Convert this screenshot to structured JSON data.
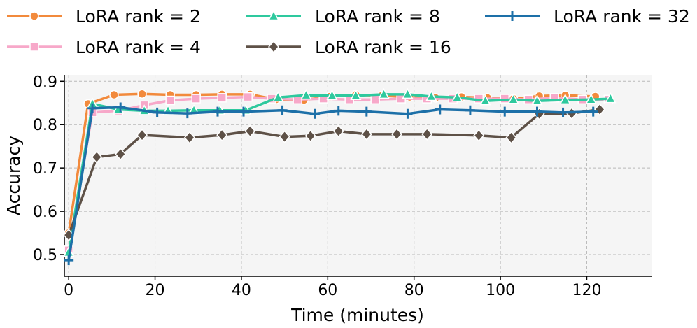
{
  "chart_data": {
    "type": "line",
    "title": "",
    "xlabel": "Time (minutes)",
    "ylabel": "Accuracy",
    "xlim": [
      -1,
      135
    ],
    "ylim": [
      0.45,
      0.915
    ],
    "xticks": [
      0,
      20,
      40,
      60,
      80,
      100,
      120
    ],
    "yticks": [
      0.5,
      0.6,
      0.7,
      0.8,
      0.9
    ],
    "xtick_labels": [
      "0",
      "20",
      "40",
      "60",
      "80",
      "100",
      "120"
    ],
    "ytick_labels": [
      "0.5",
      "0.6",
      "0.7",
      "0.8",
      "0.9"
    ],
    "grid": true,
    "legend_position": "top",
    "series": [
      {
        "name": "LoRA rank = 2",
        "color": "#f28a3c",
        "marker": "circle",
        "x": [
          0,
          4.5,
          10.5,
          17,
          23.5,
          29.5,
          35.5,
          42,
          48,
          54.5,
          60.5,
          66.5,
          72.5,
          79,
          85,
          91,
          97,
          103,
          109,
          115,
          122
        ],
        "y": [
          0.55,
          0.848,
          0.869,
          0.871,
          0.869,
          0.869,
          0.87,
          0.87,
          0.858,
          0.857,
          0.865,
          0.869,
          0.867,
          0.864,
          0.862,
          0.864,
          0.862,
          0.86,
          0.866,
          0.868,
          0.865
        ]
      },
      {
        "name": "LoRA rank = 4",
        "color": "#f7a8c9",
        "marker": "square",
        "x": [
          0,
          5.5,
          11.5,
          17.5,
          23.5,
          29.5,
          35.5,
          41.5,
          47,
          53,
          59,
          65,
          71,
          77,
          83,
          89,
          95,
          101,
          106.5,
          112.5,
          119,
          125
        ],
        "y": [
          0.51,
          0.828,
          0.832,
          0.845,
          0.856,
          0.86,
          0.862,
          0.864,
          0.86,
          0.858,
          0.86,
          0.858,
          0.858,
          0.86,
          0.86,
          0.86,
          0.86,
          0.86,
          0.858,
          0.862,
          0.858,
          0.858
        ]
      },
      {
        "name": "LoRA rank = 8",
        "color": "#2ec99e",
        "marker": "triangle",
        "x": [
          0,
          5.5,
          11.5,
          17.5,
          23,
          29,
          35,
          41,
          48.5,
          55,
          61,
          66.5,
          73,
          78.5,
          84,
          90,
          96.5,
          103,
          108.5,
          115,
          121,
          125.5
        ],
        "y": [
          0.505,
          0.848,
          0.835,
          0.832,
          0.832,
          0.833,
          0.833,
          0.833,
          0.863,
          0.868,
          0.867,
          0.867,
          0.87,
          0.87,
          0.865,
          0.863,
          0.855,
          0.858,
          0.855,
          0.857,
          0.858,
          0.86
        ]
      },
      {
        "name": "LoRA rank = 16",
        "color": "#5e5147",
        "marker": "diamond",
        "x": [
          0,
          6.5,
          12,
          17,
          28,
          35.5,
          42,
          50,
          56,
          62.5,
          69,
          76,
          83,
          95,
          102.5,
          109,
          116.5,
          123
        ],
        "y": [
          0.545,
          0.725,
          0.732,
          0.776,
          0.77,
          0.776,
          0.785,
          0.772,
          0.774,
          0.785,
          0.778,
          0.778,
          0.778,
          0.775,
          0.77,
          0.825,
          0.826,
          0.835
        ]
      },
      {
        "name": "LoRA rank = 32",
        "color": "#1d70a8",
        "marker": "plus",
        "x": [
          0,
          5.5,
          12,
          20.5,
          27.5,
          34.5,
          40.5,
          49.5,
          57,
          62.5,
          69,
          78.5,
          86,
          93,
          101,
          108.5,
          114.5,
          121.5
        ],
        "y": [
          0.487,
          0.838,
          0.84,
          0.828,
          0.826,
          0.83,
          0.83,
          0.833,
          0.825,
          0.832,
          0.83,
          0.825,
          0.835,
          0.833,
          0.83,
          0.83,
          0.828,
          0.83
        ]
      }
    ]
  }
}
